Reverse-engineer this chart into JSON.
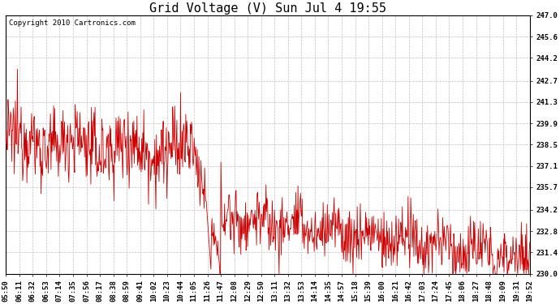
{
  "title": "Grid Voltage (V) Sun Jul 4 19:55",
  "copyright": "Copyright 2010 Cartronics.com",
  "ylim": [
    230.0,
    247.0
  ],
  "yticks": [
    230.0,
    231.4,
    232.8,
    234.2,
    235.7,
    237.1,
    238.5,
    239.9,
    241.3,
    242.7,
    244.2,
    245.6,
    247.0
  ],
  "xtick_labels": [
    "05:50",
    "06:11",
    "06:32",
    "06:53",
    "07:14",
    "07:35",
    "07:56",
    "08:17",
    "08:38",
    "08:59",
    "09:41",
    "10:02",
    "10:23",
    "10:44",
    "11:05",
    "11:26",
    "11:47",
    "12:08",
    "12:29",
    "12:50",
    "13:11",
    "13:32",
    "13:53",
    "14:14",
    "14:35",
    "14:57",
    "15:18",
    "15:39",
    "16:00",
    "16:21",
    "16:42",
    "17:03",
    "17:24",
    "17:45",
    "18:06",
    "18:27",
    "18:48",
    "19:09",
    "19:31",
    "19:52"
  ],
  "line_color": "#cc0000",
  "background_color": "#ffffff",
  "grid_color": "#c0c0c0",
  "title_fontsize": 11,
  "tick_fontsize": 6.5,
  "copyright_fontsize": 6.5
}
